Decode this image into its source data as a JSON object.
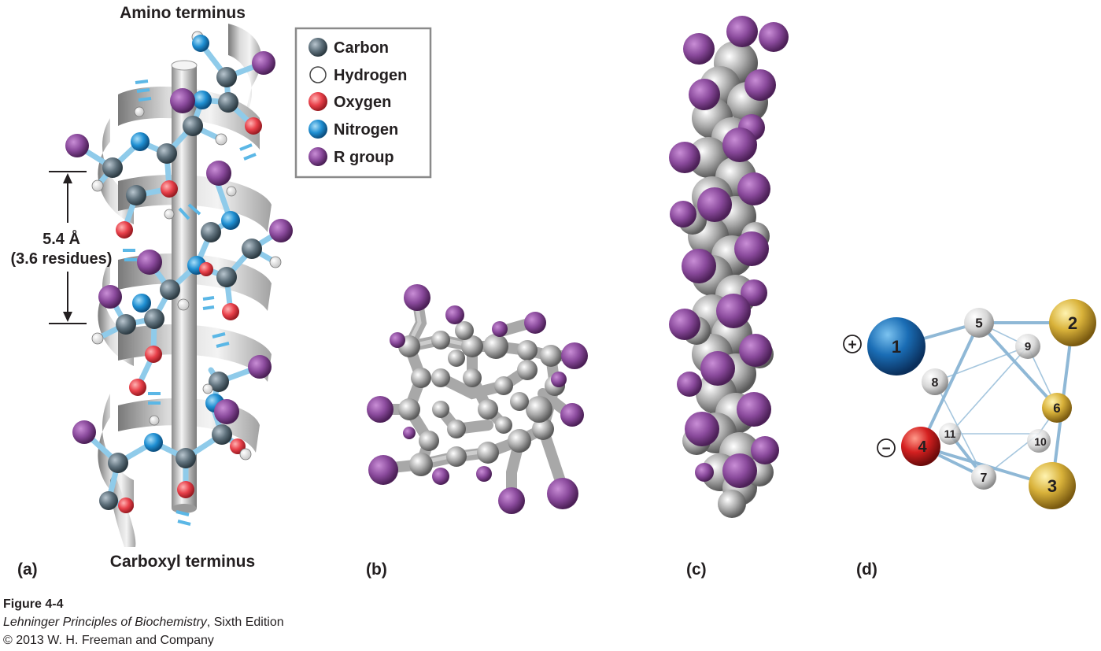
{
  "panel_a": {
    "label": "(a)",
    "top_label": "Amino terminus",
    "bottom_label": "Carboxyl terminus",
    "pitch_value": "5.4 Å",
    "pitch_residues": "(3.6 residues)"
  },
  "legend": {
    "items": [
      {
        "label": "Carbon",
        "color": "#5f717c",
        "icon": "carbon-atom-icon"
      },
      {
        "label": "Hydrogen",
        "color": "#ffffff",
        "icon": "hydrogen-atom-icon"
      },
      {
        "label": "Oxygen",
        "color": "#e8404a",
        "icon": "oxygen-atom-icon"
      },
      {
        "label": "Nitrogen",
        "color": "#1f8fd2",
        "icon": "nitrogen-atom-icon"
      },
      {
        "label": "R group",
        "color": "#8a4a9c",
        "icon": "r-group-icon"
      }
    ]
  },
  "panel_b": {
    "label": "(b)"
  },
  "panel_c": {
    "label": "(c)"
  },
  "panel_d": {
    "label": "(d)",
    "plus_sign": "+",
    "minus_sign": "−",
    "residues": [
      "1",
      "2",
      "3",
      "4",
      "5",
      "6",
      "7",
      "8",
      "9",
      "10",
      "11"
    ],
    "colors": {
      "positive": "#1a6db5",
      "negative": "#d42020",
      "hydrophobic": "#d9b23a",
      "other": "#d6d6d6",
      "bond": "#8fb8d6"
    }
  },
  "caption": {
    "figure": "Figure 4-4",
    "book_title": "Lehninger Principles of Biochemistry",
    "edition": ", Sixth Edition",
    "copyright": "© 2013 W. H. Freeman and Company"
  }
}
